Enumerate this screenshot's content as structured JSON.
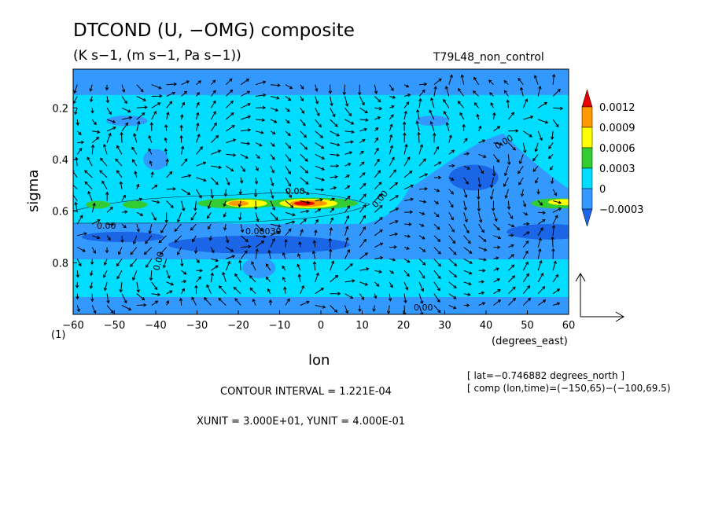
{
  "chart_data": {
    "type": "heatmap",
    "title": "DTCOND (U, −OMG) composite",
    "subtitle": "(K s−1, (m s−1, Pa s−1))",
    "run_label": "T79L48_non_control",
    "xlabel": "lon",
    "x_units": "(degrees_east)",
    "ylabel": "sigma",
    "xlim": [
      -60,
      60
    ],
    "ylim": [
      1.0,
      0.05
    ],
    "x_ticks": [
      -60,
      -50,
      -40,
      -30,
      -20,
      -10,
      0,
      10,
      20,
      30,
      40,
      50,
      60
    ],
    "x_tick_labels": [
      "−60",
      "−50",
      "−40",
      "−30",
      "−20",
      "−10",
      "0",
      "10",
      "20",
      "30",
      "40",
      "50",
      "60"
    ],
    "y_ticks": [
      0.2,
      0.4,
      0.6,
      0.8
    ],
    "y_tick_labels": [
      "0.2",
      "0.4",
      "0.6",
      "0.8"
    ],
    "y_bottom_label": "(1)",
    "colorbar": {
      "levels": [
        "0.0012",
        "0.0009",
        "0.0006",
        "0.0003",
        "0",
        "−0.0003"
      ],
      "colors": [
        "#e60000",
        "#ff9900",
        "#ffff00",
        "#33cc33",
        "#00ddff",
        "#3399ff",
        "#1a66e6"
      ]
    },
    "contour_labels": [
      "0.00",
      "0.00030",
      "0.00",
      "0.00",
      "0.00",
      "0.00",
      "0.00"
    ],
    "features": [
      {
        "lon": -20,
        "sigma": 0.57,
        "value": 0.0009
      },
      {
        "lon": -4,
        "sigma": 0.57,
        "value": 0.0012
      },
      {
        "lon": -55,
        "sigma": 0.57,
        "value": 0.0003
      },
      {
        "lon": -45,
        "sigma": 0.57,
        "value": 0.0003
      },
      {
        "lon": 57,
        "sigma": 0.57,
        "value": 0.0006
      },
      {
        "lon": -15,
        "sigma": 0.73,
        "value": -0.0003
      },
      {
        "lon": 40,
        "sigma": 0.5,
        "value": -0.0003
      }
    ],
    "contour_interval": "CONTOUR INTERVAL = 1.221E-04",
    "units_line": "XUNIT = 3.000E+01, YUNIT = 4.000E-01",
    "info": [
      "[ lat=−0.746882 degrees_north ]",
      "[ comp (lon,time)=(−150,65)−(−100,69.5)"
    ]
  }
}
